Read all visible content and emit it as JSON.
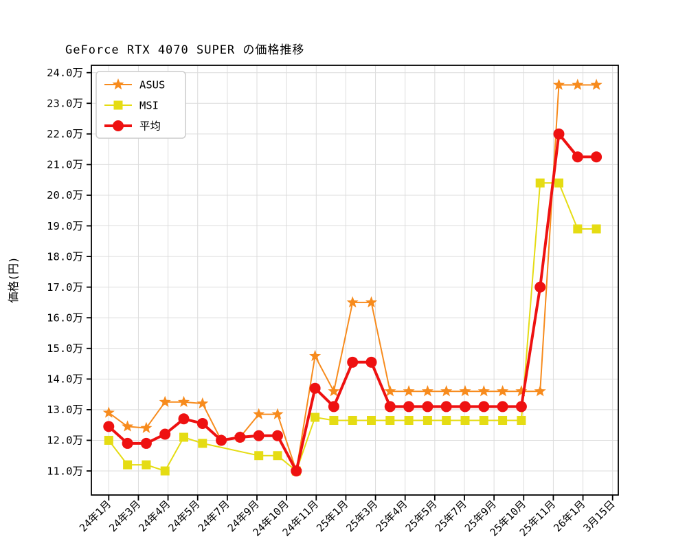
{
  "page": {
    "background": "#ffffff"
  },
  "chart_data": {
    "type": "line",
    "title": "GeForce RTX 4070 SUPER の価格推移",
    "xlabel": "",
    "ylabel": "価格(円)",
    "y_unit": "万円",
    "ylim": [
      10.2,
      24.25
    ],
    "grid": true,
    "ytick_labels": [
      "24.0万",
      "23.0万",
      "22.0万",
      "21.0万",
      "20.0万",
      "19.0万",
      "18.0万",
      "17.0万",
      "16.0万",
      "15.0万",
      "14.0万",
      "13.0万",
      "12.0万",
      "11.0万"
    ],
    "ytick_values": [
      24,
      23,
      22,
      21,
      20,
      19,
      18,
      17,
      16,
      15,
      14,
      13,
      12,
      11
    ],
    "xtick_labels": [
      "24年1月",
      "24年3月",
      "24年4月",
      "24年5月",
      "24年7月",
      "24年9月",
      "24年10月",
      "24年11月",
      "25年1月",
      "25年3月",
      "25年4月",
      "25年5月",
      "25年7月",
      "25年9月",
      "25年10月",
      "25年11月",
      "26年1月",
      "3月15日"
    ],
    "n_points": 27,
    "legend": {
      "position": "upper left",
      "entries": [
        "ASUS",
        "MSI",
        "平均"
      ]
    },
    "series": [
      {
        "name": "ASUS",
        "color": "#f78b1d",
        "marker": "star",
        "linewidth": 2,
        "values": [
          12.9,
          12.45,
          12.4,
          13.25,
          13.25,
          13.2,
          12.0,
          12.1,
          12.85,
          12.85,
          11.0,
          14.75,
          13.6,
          16.5,
          16.5,
          13.6,
          13.6,
          13.6,
          13.6,
          13.6,
          13.6,
          13.6,
          13.6,
          13.6,
          23.6,
          23.6,
          23.6
        ]
      },
      {
        "name": "MSI",
        "color": "#e5dc13",
        "marker": "square",
        "linewidth": 2,
        "values": [
          12.0,
          11.2,
          11.2,
          11.0,
          12.1,
          11.9,
          null,
          null,
          11.5,
          11.5,
          11.0,
          12.75,
          12.65,
          12.65,
          12.65,
          12.65,
          12.65,
          12.65,
          12.65,
          12.65,
          12.65,
          12.65,
          12.65,
          20.4,
          20.4,
          18.9,
          18.9
        ]
      },
      {
        "name": "平均",
        "color": "#ee1111",
        "marker": "circle",
        "linewidth": 4,
        "values": [
          12.45,
          11.9,
          11.9,
          12.2,
          12.7,
          12.55,
          12.0,
          12.1,
          12.15,
          12.15,
          11.0,
          13.7,
          13.1,
          14.55,
          14.55,
          13.1,
          13.1,
          13.1,
          13.1,
          13.1,
          13.1,
          13.1,
          13.1,
          17.0,
          22.0,
          21.25,
          21.25
        ]
      }
    ],
    "style": {
      "grid_color": "#dcdcdc",
      "spine_color": "#000000",
      "legend_border_color": "#cccccc",
      "text_color": "#000000"
    }
  }
}
